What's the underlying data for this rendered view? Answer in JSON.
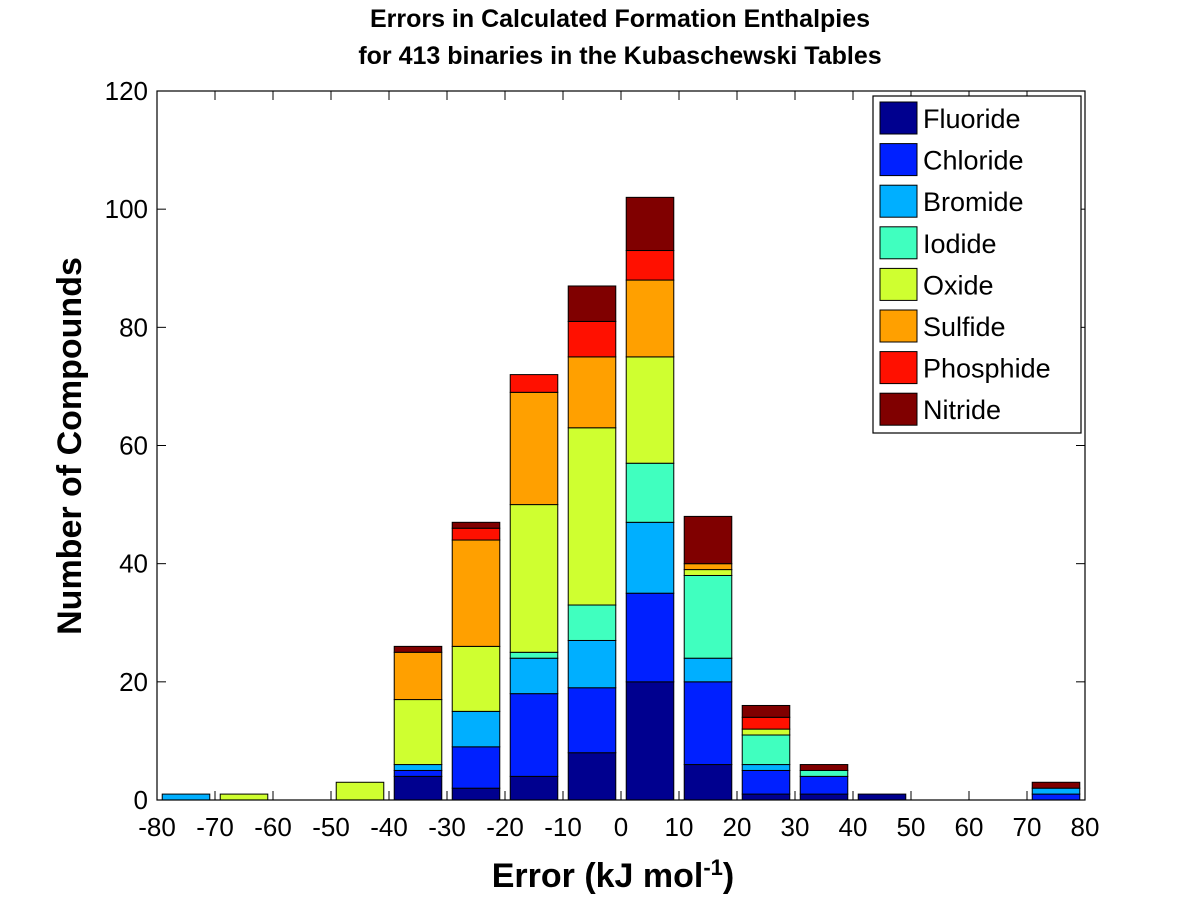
{
  "chart_data": {
    "type": "bar",
    "stacked": true,
    "title": "Errors in Calculated Formation Enthalpies",
    "subtitle": "for 413 binaries in the Kubaschewski Tables",
    "xlabel_main": "Error (kJ mol",
    "xlabel_sup": "-1",
    "xlabel_end": ")",
    "ylabel": "Number of Compounds",
    "xlim": [
      -80,
      80
    ],
    "ylim": [
      0,
      120
    ],
    "x_ticks": [
      -80,
      -70,
      -60,
      -50,
      -40,
      -30,
      -20,
      -10,
      0,
      10,
      20,
      30,
      40,
      50,
      60,
      70,
      80
    ],
    "y_ticks": [
      0,
      20,
      40,
      60,
      80,
      100,
      120
    ],
    "bin_width": 10,
    "bar_width_fraction": 0.82,
    "bin_centers": [
      -75,
      -65,
      -55,
      -45,
      -35,
      -25,
      -15,
      -5,
      5,
      15,
      25,
      35,
      45,
      55,
      65,
      75
    ],
    "legend_position": "top-right",
    "series": [
      {
        "name": "Fluoride",
        "color": "#00008F",
        "values": [
          0,
          0,
          0,
          0,
          4,
          2,
          4,
          8,
          20,
          6,
          1,
          1,
          1,
          0,
          0,
          0
        ]
      },
      {
        "name": "Chloride",
        "color": "#0020FF",
        "values": [
          0,
          0,
          0,
          0,
          1,
          7,
          14,
          11,
          15,
          14,
          4,
          3,
          0,
          0,
          0,
          1
        ]
      },
      {
        "name": "Bromide",
        "color": "#00AFFF",
        "values": [
          1,
          0,
          0,
          0,
          1,
          6,
          6,
          8,
          12,
          4,
          1,
          0,
          0,
          0,
          0,
          1
        ]
      },
      {
        "name": "Iodide",
        "color": "#40FFBF",
        "values": [
          0,
          0,
          0,
          0,
          0,
          0,
          1,
          6,
          10,
          14,
          5,
          1,
          0,
          0,
          0,
          0
        ]
      },
      {
        "name": "Oxide",
        "color": "#CFFF30",
        "values": [
          0,
          1,
          0,
          3,
          11,
          11,
          25,
          30,
          18,
          1,
          1,
          0,
          0,
          0,
          0,
          0
        ]
      },
      {
        "name": "Sulfide",
        "color": "#FFA000",
        "values": [
          0,
          0,
          0,
          0,
          8,
          18,
          19,
          12,
          13,
          1,
          0,
          0,
          0,
          0,
          0,
          0
        ]
      },
      {
        "name": "Phosphide",
        "color": "#FF1000",
        "values": [
          0,
          0,
          0,
          0,
          0,
          2,
          3,
          6,
          5,
          0,
          2,
          0,
          0,
          0,
          0,
          0
        ]
      },
      {
        "name": "Nitride",
        "color": "#800000",
        "values": [
          0,
          0,
          0,
          0,
          1,
          1,
          0,
          6,
          9,
          8,
          2,
          1,
          0,
          0,
          0,
          1
        ]
      }
    ]
  }
}
